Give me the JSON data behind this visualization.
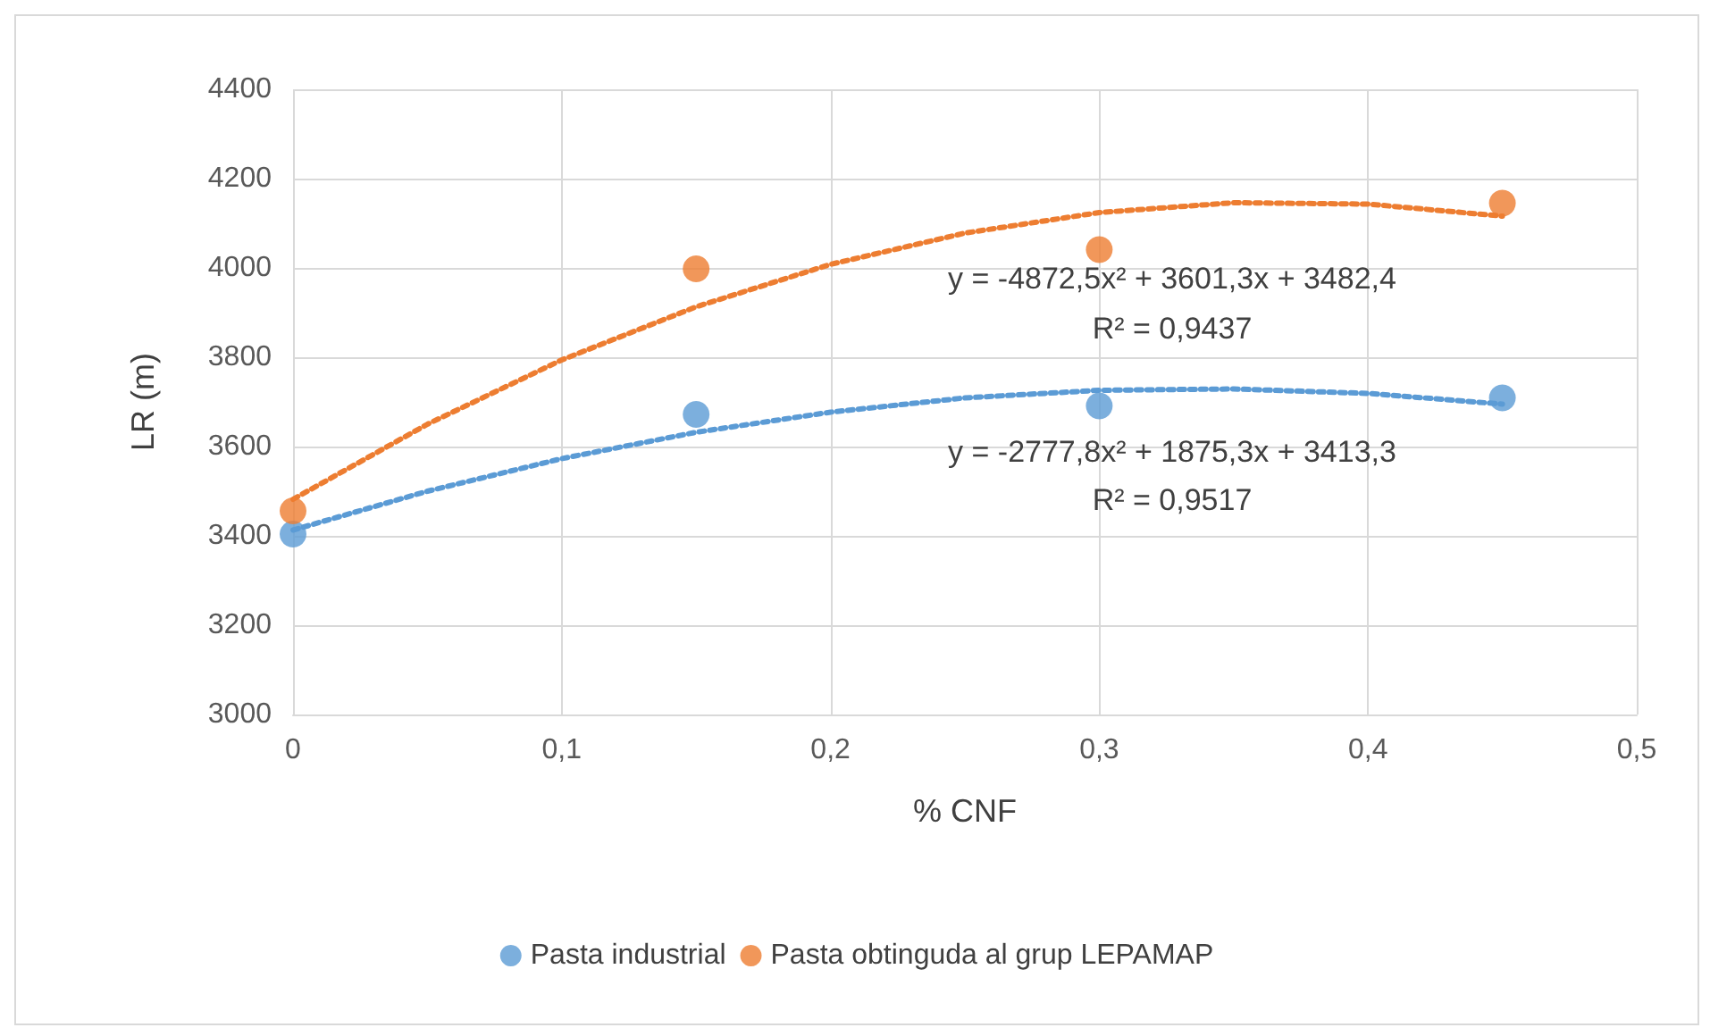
{
  "chart_data": {
    "type": "scatter",
    "xlabel": "% CNF",
    "ylabel": "LR (m)",
    "x": [
      0,
      0.15,
      0.3,
      0.45
    ],
    "series": [
      {
        "name": "Pasta industrial",
        "color": "#5b9bd5",
        "values": [
          3404,
          3672,
          3691,
          3709
        ]
      },
      {
        "name": "Pasta obtinguda al grup LEPAMAP",
        "color": "#ed7d31",
        "values": [
          3456,
          3998,
          4041,
          4145
        ]
      },
      {
        "type": "line",
        "color": "#5b9bd5",
        "line_style": "dotted",
        "marker": "none",
        "x": [
          0,
          0.05,
          0.1,
          0.15,
          0.2,
          0.25,
          0.3,
          0.35,
          0.4,
          0.45
        ],
        "values": [
          3413,
          3500,
          3573,
          3632,
          3677,
          3709,
          3726,
          3729,
          3719,
          3695
        ]
      },
      {
        "type": "line",
        "color": "#ed7d31",
        "line_style": "dotted",
        "marker": "none",
        "x": [
          0,
          0.05,
          0.1,
          0.15,
          0.2,
          0.25,
          0.3,
          0.35,
          0.4,
          0.45
        ],
        "values": [
          3482,
          3650,
          3794,
          3913,
          4008,
          4078,
          4124,
          4146,
          4143,
          4116
        ]
      }
    ],
    "annotations": [
      "y = -4872,5x² + 3601,3x + 3482,4",
      "R² = 0,9437",
      "y = -2777,8x² + 1875,3x + 3413,3",
      "R² = 0,9517"
    ],
    "xlim": [
      0,
      0.5
    ],
    "xticks": [
      {
        "value": 0,
        "label": "0"
      },
      {
        "value": 0.1,
        "label": "0,1"
      },
      {
        "value": 0.2,
        "label": "0,2"
      },
      {
        "value": 0.3,
        "label": "0,3"
      },
      {
        "value": 0.4,
        "label": "0,4"
      },
      {
        "value": 0.5,
        "label": "0,5"
      }
    ],
    "ylim": [
      3000,
      4400
    ],
    "yticks": [
      3000,
      3200,
      3400,
      3600,
      3800,
      4000,
      4200,
      4400
    ],
    "grid": true,
    "legend": "bottom",
    "marker": "circle"
  }
}
